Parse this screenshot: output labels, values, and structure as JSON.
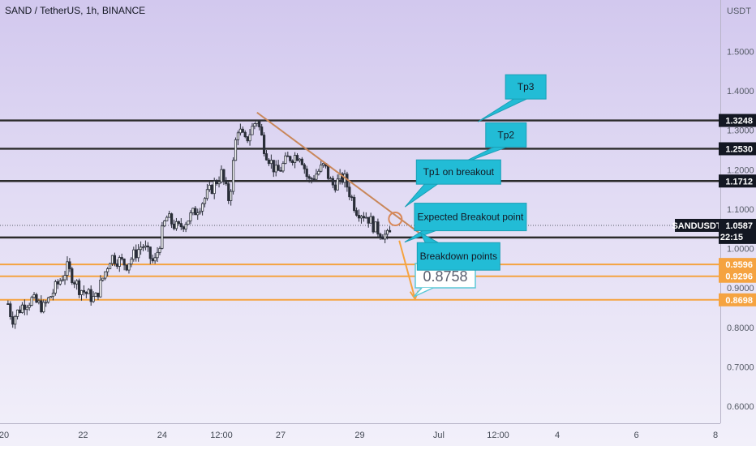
{
  "chart_data": {
    "type": "candlestick",
    "title": "SAND / TetherUS, 1h, BINANCE",
    "currency": "USDT",
    "y_range": [
      0.56,
      1.68
    ],
    "y_ticks": [
      "1.5000",
      "1.4000",
      "1.3000",
      "1.2000",
      "1.1000",
      "1.0000",
      "0.9000",
      "0.8000",
      "0.7000",
      "0.6000"
    ],
    "x_range": [
      0,
      92
    ],
    "x_ticks": [
      {
        "t": 0,
        "label": "20"
      },
      {
        "t": 10,
        "label": "22"
      },
      {
        "t": 20,
        "label": "24"
      },
      {
        "t": 27.5,
        "label": "12:00"
      },
      {
        "t": 35,
        "label": "27"
      },
      {
        "t": 45,
        "label": "29"
      },
      {
        "t": 55,
        "label": "Jul"
      },
      {
        "t": 62.5,
        "label": "12:00"
      },
      {
        "t": 70,
        "label": "4"
      },
      {
        "t": 80,
        "label": "6"
      },
      {
        "t": 90,
        "label": "8"
      }
    ],
    "price_path": [
      [
        0.5,
        0.86
      ],
      [
        1.0,
        0.82
      ],
      [
        2.5,
        0.86
      ],
      [
        3.5,
        0.87
      ],
      [
        5.0,
        0.85
      ],
      [
        6.5,
        0.9
      ],
      [
        8.0,
        0.95
      ],
      [
        9.5,
        0.9
      ],
      [
        11.5,
        0.87
      ],
      [
        13.5,
        0.98
      ],
      [
        15.5,
        0.96
      ],
      [
        17.5,
        1.01
      ],
      [
        19.0,
        0.96
      ],
      [
        20.5,
        1.08
      ],
      [
        22.0,
        1.05
      ],
      [
        24.0,
        1.09
      ],
      [
        25.5,
        1.13
      ],
      [
        27.5,
        1.19
      ],
      [
        28.5,
        1.12
      ],
      [
        29.5,
        1.31
      ],
      [
        30.5,
        1.27
      ],
      [
        32.0,
        1.33
      ],
      [
        33.0,
        1.25
      ],
      [
        34.5,
        1.19
      ],
      [
        36.0,
        1.23
      ],
      [
        37.5,
        1.24
      ],
      [
        38.5,
        1.17
      ],
      [
        40.5,
        1.21
      ],
      [
        41.5,
        1.16
      ],
      [
        43.0,
        1.18
      ],
      [
        44.5,
        1.1
      ],
      [
        46.0,
        1.08
      ],
      [
        47.0,
        1.05
      ],
      [
        48.5,
        1.03
      ],
      [
        49.0,
        1.04
      ]
    ],
    "horizontal_levels": [
      {
        "value": 1.3248,
        "label": "1.3248",
        "kind": "resistance",
        "color": "#2b2b2b"
      },
      {
        "value": 1.253,
        "label": "1.2530",
        "kind": "resistance",
        "color": "#2b2b2b"
      },
      {
        "value": 1.1712,
        "label": "1.1712",
        "kind": "resistance",
        "color": "#2b2b2b"
      },
      {
        "value": 1.028,
        "label": "1.0280",
        "kind": "support",
        "color": "#2b2b2b"
      },
      {
        "value": 0.9596,
        "label": "0.9596",
        "kind": "target",
        "color": "#f5a340"
      },
      {
        "value": 0.9296,
        "label": "0.9296",
        "kind": "target",
        "color": "#f5a340"
      },
      {
        "value": 0.8698,
        "label": "0.8698",
        "kind": "target",
        "color": "#f5a340"
      }
    ],
    "current_price": {
      "symbol": "SANDUSDT",
      "value": "1.0587",
      "y": 1.0587,
      "countdown": "22:15"
    },
    "trendline": {
      "from": [
        32,
        1.345
      ],
      "to": [
        53.5,
        1.025
      ],
      "color": "#c9875a"
    },
    "breakout_marker": {
      "t": 49.5,
      "y": 1.075
    },
    "projection": {
      "from": [
        50,
        1.02
      ],
      "to": [
        52,
        0.872
      ],
      "value_label": "0.8758",
      "color": "#f5a340"
    },
    "annotations": [
      {
        "text": "Tp3",
        "t": 66,
        "y": 1.41
      },
      {
        "text": "Tp2",
        "t": 63.5,
        "y": 1.288
      },
      {
        "text": "Tp1 on breakout",
        "t": 57.5,
        "y": 1.194
      },
      {
        "text": "Expected Breakout point",
        "t": 59,
        "y": 1.08
      },
      {
        "text": "Breakdown points",
        "t": 57.5,
        "y": 0.98
      }
    ],
    "colors": {
      "candle": "#2a2e39",
      "level_dark": "#2b2b2b",
      "level_orange": "#f5a340",
      "callout_fill": "#22bcd6",
      "trendline": "#c9875a"
    }
  }
}
